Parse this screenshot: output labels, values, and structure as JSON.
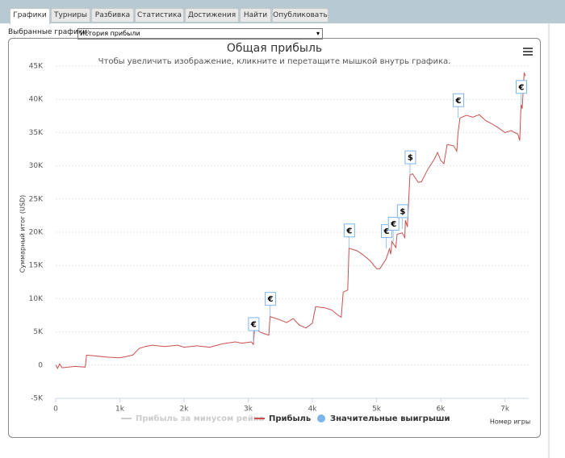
{
  "tabs": [
    "Графики",
    "Турниры",
    "Разбивка",
    "Статистика",
    "Достижения",
    "Найти",
    "Опубликовать"
  ],
  "selector": {
    "label": "Выбранные графики:",
    "value": "История прибыли"
  },
  "chart_data": {
    "type": "line",
    "title": "Общая прибыль",
    "subtitle": "Чтобы увеличить изображение, кликните и перетащите мышкой внутрь графика.",
    "y_label": "Суммарный итог (USD)",
    "x_label": "Номер игры",
    "xlim": [
      0,
      7370
    ],
    "ylim": [
      -5000,
      45000
    ],
    "xticks": [
      0,
      {
        "value": 1000,
        "label": "1k"
      },
      {
        "value": 2000,
        "label": "2k"
      },
      {
        "value": 3000,
        "label": "3k"
      },
      {
        "value": 4000,
        "label": "4k"
      },
      {
        "value": 5000,
        "label": "5k"
      },
      {
        "value": 6000,
        "label": "6k"
      },
      {
        "value": 7000,
        "label": "7k"
      }
    ],
    "yticks": [
      {
        "value": -5000,
        "label": "-5K"
      },
      0,
      {
        "value": 5000,
        "label": "5K"
      },
      {
        "value": 10000,
        "label": "10K"
      },
      {
        "value": 15000,
        "label": "15K"
      },
      {
        "value": 20000,
        "label": "20K"
      },
      {
        "value": 25000,
        "label": "25K"
      },
      {
        "value": 30000,
        "label": "30K"
      },
      {
        "value": 35000,
        "label": "35K"
      },
      {
        "value": 40000,
        "label": "40K"
      },
      {
        "value": 45000,
        "label": "45K"
      }
    ],
    "grid": true,
    "hidden_series": [
      {
        "name": "Прибыль за минусом рейка",
        "color": "#cccccc"
      }
    ],
    "series": [
      {
        "name": "Прибыль",
        "color": "#c9504f",
        "x": [
          0,
          30,
          60,
          100,
          200,
          300,
          460,
          480,
          600,
          800,
          1000,
          1200,
          1300,
          1400,
          1500,
          1700,
          1900,
          2000,
          2200,
          2400,
          2600,
          2800,
          2900,
          3050,
          3080,
          3100,
          3200,
          3320,
          3340,
          3500,
          3600,
          3700,
          3800,
          3900,
          4000,
          4050,
          4200,
          4300,
          4400,
          4450,
          4480,
          4550,
          4570,
          4700,
          4800,
          4900,
          5000,
          5050,
          5150,
          5200,
          5220,
          5240,
          5300,
          5320,
          5400,
          5440,
          5450,
          5480,
          5520,
          5560,
          5600,
          5650,
          5700,
          5800,
          5900,
          5950,
          6000,
          6050,
          6100,
          6200,
          6250,
          6270,
          6300,
          6400,
          6500,
          6600,
          6700,
          6800,
          6900,
          7000,
          7100,
          7150,
          7200,
          7230,
          7250,
          7270,
          7300,
          7320
        ],
        "values": [
          0,
          -500,
          200,
          -400,
          -300,
          -200,
          -300,
          1500,
          1400,
          1200,
          1100,
          1500,
          2500,
          2800,
          3000,
          2800,
          3000,
          2700,
          2900,
          2700,
          3200,
          3500,
          3300,
          3500,
          3100,
          5500,
          4900,
          4500,
          7300,
          6800,
          6400,
          7000,
          6000,
          5600,
          6300,
          8800,
          8600,
          8300,
          7500,
          7200,
          11000,
          11300,
          17600,
          17200,
          16500,
          15700,
          14500,
          14500,
          16000,
          17500,
          16700,
          18600,
          17700,
          19700,
          19900,
          19200,
          21800,
          20800,
          28600,
          28800,
          28200,
          27500,
          27600,
          29500,
          31000,
          32000,
          30800,
          30300,
          33200,
          33000,
          32200,
          35000,
          37200,
          37600,
          37300,
          37700,
          36800,
          36300,
          35700,
          35000,
          35300,
          35000,
          34800,
          33800,
          39200,
          38600,
          44000,
          43500
        ]
      }
    ],
    "flags": {
      "name": "Значительные выигрыши",
      "color": "#7cb5ec",
      "x": [
        3080,
        3340,
        4570,
        5150,
        5260,
        5400,
        5520,
        6270,
        7250
      ],
      "values": [
        3500,
        7300,
        17600,
        17500,
        18600,
        20500,
        28600,
        37200,
        39200
      ],
      "labels": [
        "€",
        "€",
        "€",
        "€",
        "€",
        "$",
        "$",
        "€",
        "€"
      ]
    }
  }
}
